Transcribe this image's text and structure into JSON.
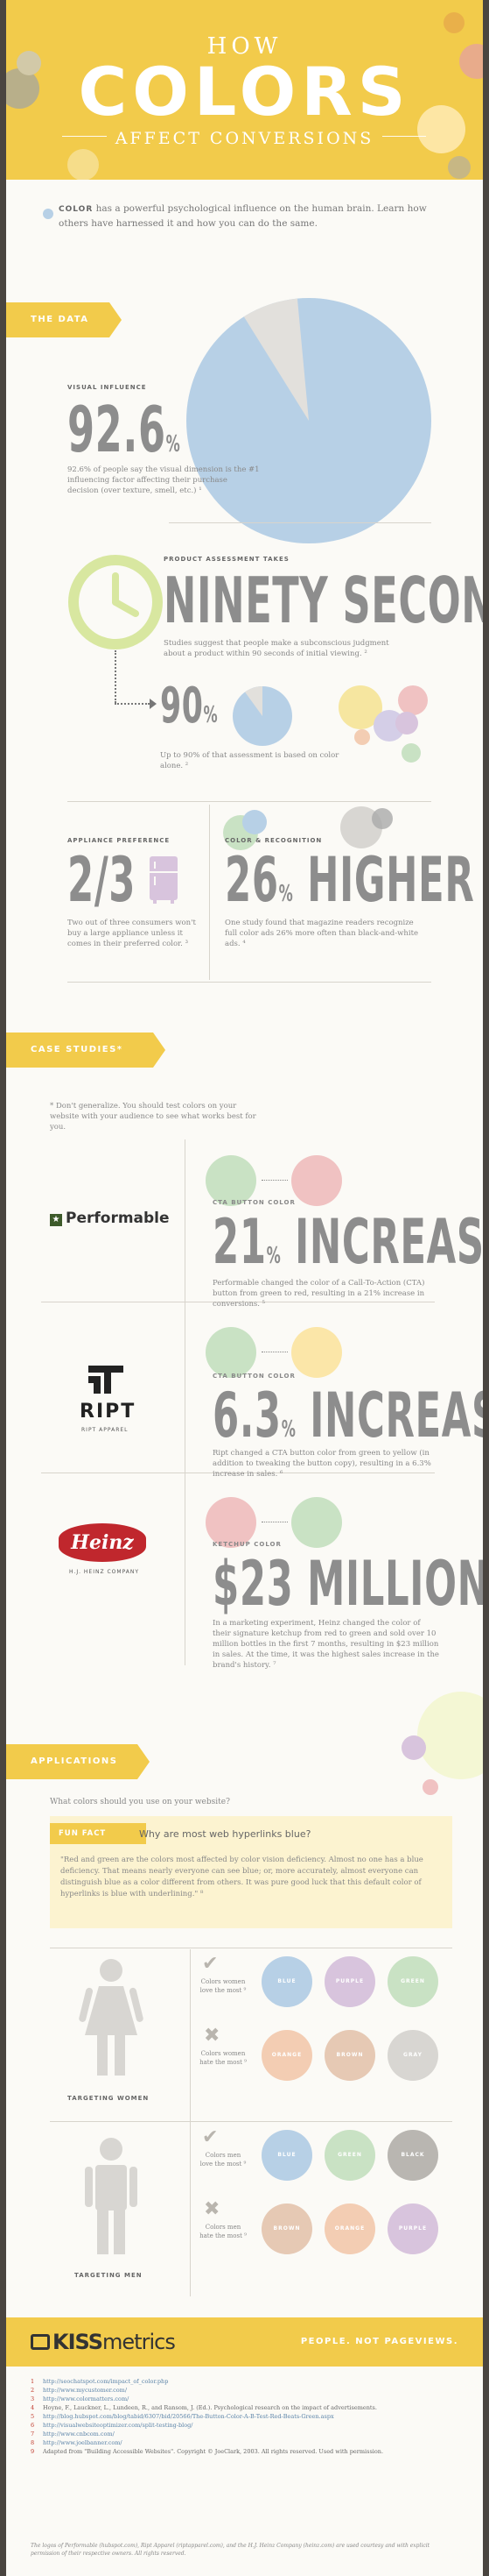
{
  "header": {
    "line1": "HOW",
    "line2": "COLORS",
    "line3": "AFFECT CONVERSIONS"
  },
  "intro": {
    "lead": "COLOR",
    "text": " has a powerful psychological influence on the human brain. Learn how others have harnessed it and how you can do the same."
  },
  "the_data": {
    "label": "THE DATA",
    "visual_influence": {
      "caption": "VISUAL INFLUENCE",
      "value": "92.6",
      "unit": "%",
      "text": "92.6% of people say the visual dimension is the #1 influencing factor affecting their purchase decision (over texture, smell, etc.) ¹",
      "pie_fraction": 0.926
    },
    "assessment": {
      "caption": "PRODUCT ASSESSMENT TAKES",
      "value": "NINETY SECONDS",
      "text": "Studies suggest that people make a subconscious judgment about a product within 90 seconds of initial viewing. ²"
    },
    "ninety_pct": {
      "value": "90",
      "unit": "%",
      "text": "Up to 90% of that assessment is based on color alone. ²",
      "pie_fraction": 0.9
    },
    "appliance": {
      "caption": "APPLIANCE PREFERENCE",
      "value": "2/3",
      "text": "Two out of three consumers won't buy a large appliance unless it comes in their preferred color. ³"
    },
    "recognition": {
      "caption": "COLOR & RECOGNITION",
      "value": "26",
      "unit": "%",
      "suffix": "HIGHER",
      "text": "One study found that magazine readers recognize full color ads 26% more often than black-and-white ads. ⁴"
    }
  },
  "case_studies": {
    "label": "CASE STUDIES*",
    "note": "* Don't generalize. You should test colors on your website with your audience to see what works best for you.",
    "items": [
      {
        "logo": "Performable",
        "caption": "CTA BUTTON COLOR",
        "value": "21",
        "unit": "%",
        "suffix": "INCREASE",
        "text": "Performable changed the color of a Call-To-Action (CTA) button from green to red, resulting in a 21% increase in conversions. ⁵"
      },
      {
        "logo": "RIPT",
        "logo_sub": "RIPT APPAREL",
        "caption": "CTA BUTTON COLOR",
        "value": "6.3",
        "unit": "%",
        "suffix": "INCREASE",
        "text": "Ript changed a CTA button color from green to yellow (in addition to tweaking the button copy), resulting in a 6.3% increase in sales. ⁶"
      },
      {
        "logo": "Heinz",
        "logo_sub": "H.J. HEINZ COMPANY",
        "caption": "KETCHUP COLOR",
        "value": "$23 MILLION",
        "text": "In a marketing experiment, Heinz changed the color of their signature ketchup from red to green and sold over 10 million bottles in the first 7 months, resulting in $23 million in sales. At the time, it was the highest sales increase in the brand's history. ⁷"
      }
    ]
  },
  "applications": {
    "label": "APPLICATIONS",
    "question": "What colors should you use on your website?",
    "fun_fact_label": "FUN FACT",
    "fun_fact_title": "Why are most web hyperlinks blue?",
    "fun_fact_text": "\"Red and green are the colors most affected by color vision deficiency. Almost no one has a blue deficiency. That means nearly everyone can see blue; or, more accurately, almost everyone can distinguish blue as a color different from others. It was pure good luck that this default color of hyperlinks is blue with underlining.\" ⁸",
    "women": {
      "label": "TARGETING WOMEN",
      "most": "Colors women love the most ⁹",
      "least": "Colors women hate the most ⁹",
      "like": [
        "BLUE",
        "PURPLE",
        "GREEN"
      ],
      "dislike": [
        "ORANGE",
        "BROWN",
        "GRAY"
      ]
    },
    "men": {
      "label": "TARGETING MEN",
      "most": "Colors men love the most ⁹",
      "least": "Colors men hate the most ⁹",
      "like": [
        "BLUE",
        "GREEN",
        "BLACK"
      ],
      "dislike": [
        "BROWN",
        "ORANGE",
        "PURPLE"
      ]
    }
  },
  "footer": {
    "brand_kiss": "KISS",
    "brand_metrics": "metrics",
    "tagline": "PEOPLE. NOT PAGEVIEWS."
  },
  "references": [
    {
      "n": "1",
      "t": "http://seochatspot.com/impact_of_color.php"
    },
    {
      "n": "2",
      "t": "http://www.mycustomer.com/"
    },
    {
      "n": "3",
      "t": "http://www.colormatters.com/"
    },
    {
      "n": "4",
      "t": "Hoyne, F., Lauckner, L., Lundeen, R., and Ransom, J. (Ed.). Psychological research on the impact of advertisements."
    },
    {
      "n": "5",
      "t": "http://blog.hubspot.com/blog/tabid/6307/bid/20566/The-Button-Color-A-B-Test-Red-Beats-Green.aspx"
    },
    {
      "n": "6",
      "t": "http://visualwebsiteoptimizer.com/split-testing-blog/"
    },
    {
      "n": "7",
      "t": "http://www.cnbcom.com/"
    },
    {
      "n": "8",
      "t": "http://www.joelbanner.com/"
    },
    {
      "n": "9",
      "t": "Adapted from \"Building Accessible Websites\". Copyright © JoeClark, 2003. All rights reserved. Used with permission."
    }
  ],
  "disclaimer": "The logos of Performable (hubspot.com), Ript Apparel (riptapparel.com), and the H.J. Heinz Company (heinz.com) are used courtesy and with explicit permission of their respective owners. All rights reserved.",
  "colors": {
    "yellow": "#f2cb4b",
    "blue": "#b7d0e6",
    "green": "#c9e2c4",
    "red": "#f0c2c2",
    "peach": "#f3cdb3",
    "purple": "#d8c4dd",
    "gray": "#d8d6d2"
  }
}
